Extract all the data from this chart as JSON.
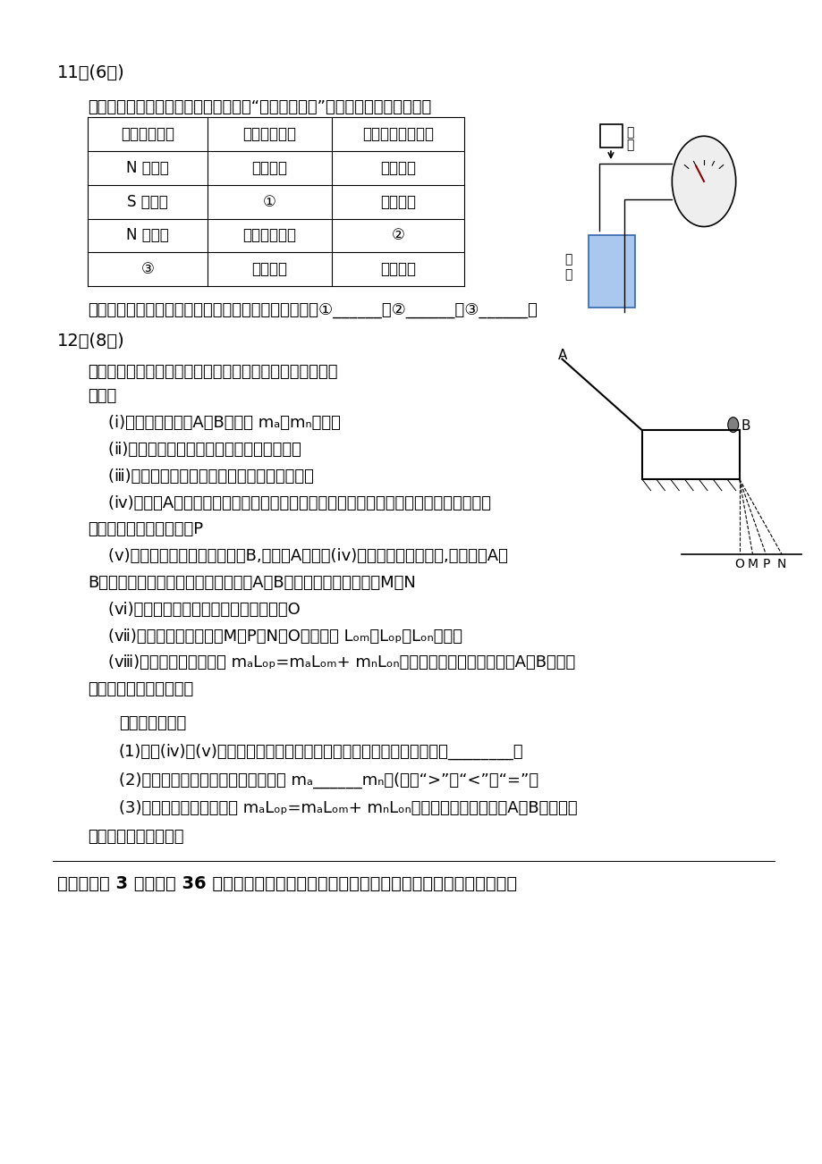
{
  "bg_color": "#ffffff",
  "q11_header": "11．(6分)",
  "q11_intro": "某实验小组用如图所示的实验装置完成“探究楞次定律”的实验，实验记录如下表",
  "table_headers": [
    "磁铁放置情况",
    "磁铁运动情况",
    "电表指针偏转情况"
  ],
  "table_rows": [
    [
      "N 极朝下",
      "插入线圈",
      "向左偏转"
    ],
    [
      "S 极朝下",
      "①",
      "向左偏转"
    ],
    [
      "N 极朝下",
      "从线圈中抽出",
      "②"
    ],
    [
      "③",
      "插入线圈",
      "向右偏转"
    ]
  ],
  "q11_footer": "该同学实验记录中有三处忘记记录了，请你补充完整：①______；②______；③______。",
  "q12_header": "12．(8分)",
  "q12_intro": "用如图所示的实验装置验证动量守恒定律。实验的主要步骤",
  "q12_intro2": "如下：",
  "q3_header": "三、本题共 3 小题，共 36 分。解答时请写出必要的文字说明、方程式和重要的演算步骤，只"
}
